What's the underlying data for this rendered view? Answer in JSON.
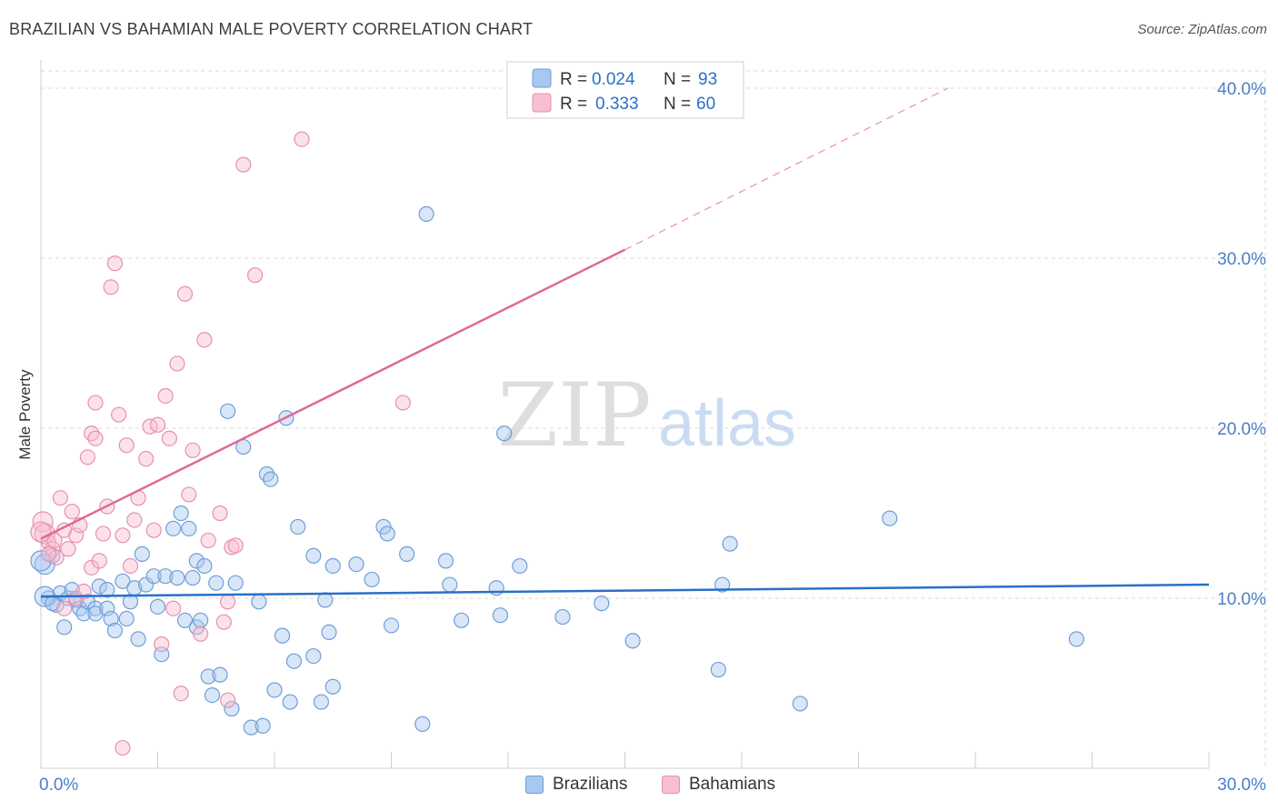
{
  "title": "BRAZILIAN VS BAHAMIAN MALE POVERTY CORRELATION CHART",
  "source": "Source: ZipAtlas.com",
  "watermark": {
    "zip": "ZIP",
    "atlas": "atlas"
  },
  "colors": {
    "blue_fill": "#a8c8f0",
    "blue_stroke": "#6f9ed8",
    "blue_line": "#2a6fc9",
    "pink_fill": "#f7bfd0",
    "pink_stroke": "#e890ad",
    "pink_line": "#e06a93",
    "axis_text": "#4a7fc8",
    "grid": "#d8d8d8"
  },
  "legend": {
    "rows": [
      {
        "r_label": "R =",
        "r_value": "0.024",
        "n_label": "N =",
        "n_value": "93"
      },
      {
        "r_label": "R =",
        "r_value": "0.333",
        "n_label": "N =",
        "n_value": "60"
      }
    ]
  },
  "bottom_legend": {
    "items": [
      "Brazilians",
      "Bahamians"
    ]
  },
  "chart_data": {
    "type": "scatter",
    "ylabel": "Male Poverty",
    "xlim": [
      0,
      30
    ],
    "ylim": [
      0,
      40
    ],
    "x_tick_labels": [
      "0.0%",
      "30.0%"
    ],
    "y_ticks": [
      10,
      20,
      30,
      40
    ],
    "y_tick_labels": [
      "10.0%",
      "20.0%",
      "30.0%",
      "40.0%"
    ],
    "series": [
      {
        "name": "Brazilians",
        "trend": {
          "x": [
            0,
            30
          ],
          "y": [
            10.1,
            10.8
          ]
        },
        "points": [
          [
            0.1,
            12.0
          ],
          [
            0.2,
            10.0
          ],
          [
            0.3,
            12.5
          ],
          [
            0.4,
            9.6
          ],
          [
            0.5,
            10.3
          ],
          [
            0.6,
            8.3
          ],
          [
            0.7,
            10.0
          ],
          [
            0.8,
            10.5
          ],
          [
            0.9,
            9.9
          ],
          [
            1.0,
            9.4
          ],
          [
            1.1,
            9.1
          ],
          [
            1.2,
            9.8
          ],
          [
            1.4,
            9.4
          ],
          [
            1.4,
            9.1
          ],
          [
            1.5,
            10.7
          ],
          [
            1.7,
            9.4
          ],
          [
            1.7,
            10.5
          ],
          [
            1.8,
            8.8
          ],
          [
            1.9,
            8.1
          ],
          [
            2.1,
            11.0
          ],
          [
            2.2,
            8.8
          ],
          [
            2.3,
            9.8
          ],
          [
            2.4,
            10.6
          ],
          [
            2.5,
            7.6
          ],
          [
            2.6,
            12.6
          ],
          [
            2.7,
            10.8
          ],
          [
            2.9,
            11.3
          ],
          [
            3.0,
            9.5
          ],
          [
            3.1,
            6.7
          ],
          [
            3.2,
            11.3
          ],
          [
            3.4,
            14.1
          ],
          [
            3.5,
            11.2
          ],
          [
            3.6,
            15.0
          ],
          [
            3.7,
            8.7
          ],
          [
            3.8,
            14.1
          ],
          [
            3.9,
            11.2
          ],
          [
            4.0,
            12.2
          ],
          [
            4.0,
            8.3
          ],
          [
            4.1,
            8.7
          ],
          [
            4.2,
            11.9
          ],
          [
            4.3,
            5.4
          ],
          [
            4.4,
            4.3
          ],
          [
            4.5,
            10.9
          ],
          [
            4.6,
            5.5
          ],
          [
            4.8,
            21.0
          ],
          [
            4.9,
            3.5
          ],
          [
            5.0,
            10.9
          ],
          [
            5.2,
            18.9
          ],
          [
            5.4,
            2.4
          ],
          [
            5.6,
            9.8
          ],
          [
            5.7,
            2.5
          ],
          [
            5.8,
            17.3
          ],
          [
            5.9,
            17.0
          ],
          [
            6.0,
            4.6
          ],
          [
            6.2,
            7.8
          ],
          [
            6.3,
            20.6
          ],
          [
            6.4,
            3.9
          ],
          [
            6.5,
            6.3
          ],
          [
            6.6,
            14.2
          ],
          [
            7.0,
            6.6
          ],
          [
            7.0,
            12.5
          ],
          [
            7.2,
            3.9
          ],
          [
            7.3,
            9.9
          ],
          [
            7.4,
            8.0
          ],
          [
            7.5,
            4.8
          ],
          [
            7.5,
            11.9
          ],
          [
            8.1,
            12.0
          ],
          [
            8.5,
            11.1
          ],
          [
            8.8,
            14.2
          ],
          [
            8.9,
            13.8
          ],
          [
            9.0,
            8.4
          ],
          [
            9.4,
            12.6
          ],
          [
            9.8,
            2.6
          ],
          [
            9.9,
            32.6
          ],
          [
            10.4,
            12.2
          ],
          [
            10.5,
            10.8
          ],
          [
            10.8,
            8.7
          ],
          [
            11.7,
            10.6
          ],
          [
            11.8,
            9.0
          ],
          [
            11.9,
            19.7
          ],
          [
            12.3,
            11.9
          ],
          [
            13.4,
            8.9
          ],
          [
            14.4,
            9.7
          ],
          [
            15.2,
            7.5
          ],
          [
            17.4,
            5.8
          ],
          [
            17.5,
            10.8
          ],
          [
            17.7,
            13.2
          ],
          [
            19.5,
            3.8
          ],
          [
            21.8,
            14.7
          ],
          [
            26.6,
            7.6
          ],
          [
            0.0,
            12.2
          ],
          [
            0.1,
            10.1
          ],
          [
            0.3,
            9.7
          ]
        ]
      },
      {
        "name": "Bahamians",
        "trend": {
          "x": [
            0,
            15
          ],
          "y": [
            13.5,
            30.5
          ]
        },
        "trend_extension": {
          "x": [
            15,
            23.3
          ],
          "y": [
            30.5,
            40.0
          ]
        },
        "points": [
          [
            0.05,
            14.5
          ],
          [
            0.1,
            13.8
          ],
          [
            0.2,
            13.3
          ],
          [
            0.3,
            12.9
          ],
          [
            0.35,
            13.4
          ],
          [
            0.4,
            12.4
          ],
          [
            0.5,
            15.9
          ],
          [
            0.6,
            14.0
          ],
          [
            0.6,
            9.4
          ],
          [
            0.7,
            12.9
          ],
          [
            0.8,
            15.1
          ],
          [
            0.9,
            13.7
          ],
          [
            0.9,
            10.0
          ],
          [
            1.0,
            14.3
          ],
          [
            1.1,
            10.4
          ],
          [
            1.2,
            18.3
          ],
          [
            1.3,
            19.7
          ],
          [
            1.3,
            11.8
          ],
          [
            1.4,
            19.4
          ],
          [
            1.4,
            21.5
          ],
          [
            1.5,
            12.2
          ],
          [
            1.6,
            13.8
          ],
          [
            1.7,
            15.4
          ],
          [
            1.8,
            28.3
          ],
          [
            1.9,
            29.7
          ],
          [
            2.0,
            20.8
          ],
          [
            2.1,
            13.7
          ],
          [
            2.1,
            1.2
          ],
          [
            2.2,
            19.0
          ],
          [
            2.3,
            11.9
          ],
          [
            2.4,
            14.6
          ],
          [
            2.5,
            15.9
          ],
          [
            2.7,
            18.2
          ],
          [
            2.8,
            20.1
          ],
          [
            2.9,
            14.0
          ],
          [
            3.0,
            20.2
          ],
          [
            3.1,
            7.3
          ],
          [
            3.2,
            21.9
          ],
          [
            3.3,
            19.4
          ],
          [
            3.4,
            9.4
          ],
          [
            3.5,
            23.8
          ],
          [
            3.6,
            4.4
          ],
          [
            3.7,
            27.9
          ],
          [
            3.8,
            16.1
          ],
          [
            3.9,
            18.7
          ],
          [
            4.1,
            7.9
          ],
          [
            4.2,
            25.2
          ],
          [
            4.3,
            13.4
          ],
          [
            4.6,
            15.0
          ],
          [
            4.7,
            8.6
          ],
          [
            4.8,
            9.8
          ],
          [
            4.8,
            4.0
          ],
          [
            4.9,
            13.0
          ],
          [
            5.0,
            13.1
          ],
          [
            5.2,
            35.5
          ],
          [
            5.5,
            29.0
          ],
          [
            6.7,
            37.0
          ],
          [
            9.3,
            21.5
          ],
          [
            0.0,
            13.9
          ],
          [
            0.2,
            12.6
          ]
        ]
      }
    ]
  }
}
